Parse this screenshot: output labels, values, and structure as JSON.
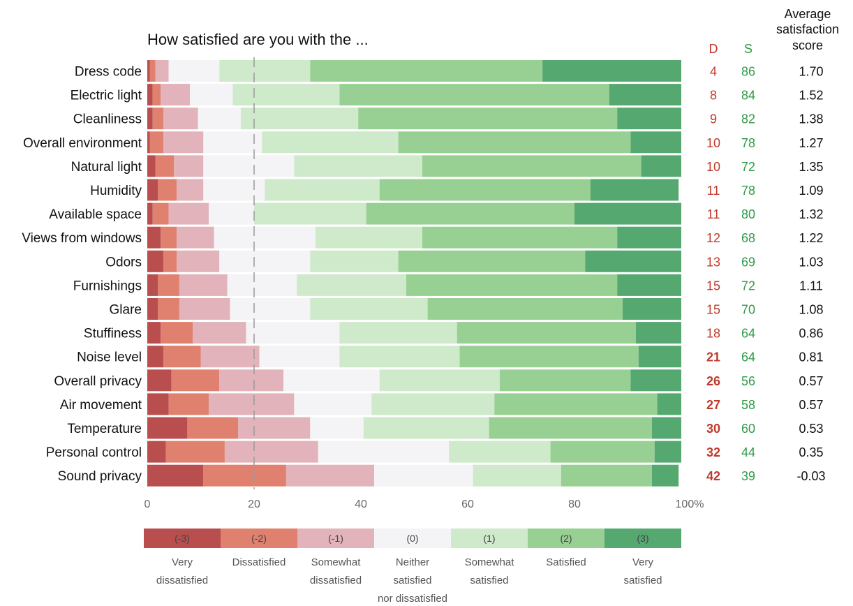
{
  "chart_data": {
    "type": "bar",
    "stacked": true,
    "orientation": "horizontal",
    "title": "How satisfied are you with the ...",
    "xlim": [
      0,
      100
    ],
    "x_ticks": [
      "0",
      "20",
      "40",
      "60",
      "80",
      "100%"
    ],
    "reference_line_x": 20,
    "categories": [
      "Dress code",
      "Electric light",
      "Cleanliness",
      "Overall environment",
      "Natural light",
      "Humidity",
      "Available space",
      "Views from windows",
      "Odors",
      "Furnishings",
      "Glare",
      "Stuffiness",
      "Noise level",
      "Overall privacy",
      "Air movement",
      "Temperature",
      "Personal control",
      "Sound privacy"
    ],
    "series": [
      {
        "name": "Very dissatisfied",
        "code": "(-3)",
        "color": "#b84e4e",
        "values": [
          0.5,
          1,
          1,
          0.5,
          1.5,
          2,
          1,
          2.5,
          3,
          2,
          2,
          2.5,
          3,
          4.5,
          4,
          7.5,
          3.5,
          10.5
        ]
      },
      {
        "name": "Dissatisfied",
        "code": "(-2)",
        "color": "#e0806e",
        "values": [
          1,
          1.5,
          2,
          2.5,
          3.5,
          3.5,
          3,
          3,
          2.5,
          4,
          4,
          6,
          7,
          9,
          7.5,
          9.5,
          11,
          15.5
        ]
      },
      {
        "name": "Somewhat dissatisfied",
        "code": "(-1)",
        "color": "#e2b3ba",
        "values": [
          2.5,
          5.5,
          6.5,
          7.5,
          5.5,
          5,
          7.5,
          7,
          8,
          9,
          9.5,
          10,
          11,
          12,
          16,
          13.5,
          17.5,
          16.5
        ]
      },
      {
        "name": "Neither satisfied nor dissatisfied",
        "code": "(0)",
        "color": "#f4f4f6",
        "values": [
          9.5,
          8,
          8,
          11,
          17,
          11.5,
          8.5,
          19,
          17,
          13,
          15,
          17.5,
          15,
          18,
          14.5,
          10,
          24.5,
          18.5
        ]
      },
      {
        "name": "Somewhat satisfied",
        "code": "(1)",
        "color": "#cfe9cb",
        "values": [
          17,
          20,
          22,
          25.5,
          24,
          21.5,
          21,
          20,
          16.5,
          20.5,
          22,
          22,
          22.5,
          22.5,
          23,
          23.5,
          19,
          16.5
        ]
      },
      {
        "name": "Satisfied",
        "code": "(2)",
        "color": "#98d093",
        "values": [
          43.5,
          50.5,
          48.5,
          43.5,
          41,
          39.5,
          39,
          36.5,
          35,
          39.5,
          36.5,
          33.5,
          33.5,
          24.5,
          30.5,
          30.5,
          19.5,
          17
        ]
      },
      {
        "name": "Very satisfied",
        "code": "(3)",
        "color": "#55a870",
        "values": [
          26,
          13.5,
          12,
          9.5,
          7.5,
          16.5,
          20,
          12,
          18,
          12,
          11,
          8.5,
          8,
          9.5,
          4.5,
          5.5,
          5,
          5
        ]
      }
    ],
    "legend_labels": [
      [
        "Very",
        "dissatisfied"
      ],
      [
        "Dissatisfied"
      ],
      [
        "Somewhat",
        "dissatisfied"
      ],
      [
        "Neither",
        "satisfied",
        "nor dissatisfied"
      ],
      [
        "Somewhat",
        "satisfied"
      ],
      [
        "Satisfied"
      ],
      [
        "Very",
        "satisfied"
      ]
    ],
    "legend_placement": "bottom",
    "side_columns": {
      "d_header": "D",
      "s_header": "S",
      "avg_header": [
        "Average",
        "satisfaction",
        "score"
      ],
      "d_values": [
        "4",
        "8",
        "9",
        "10",
        "10",
        "11",
        "11",
        "12",
        "13",
        "15",
        "15",
        "18",
        "21",
        "26",
        "27",
        "30",
        "32",
        "42"
      ],
      "d_bold_from_index": 12,
      "s_values": [
        "86",
        "84",
        "82",
        "78",
        "72",
        "78",
        "80",
        "68",
        "69",
        "72",
        "70",
        "64",
        "64",
        "56",
        "58",
        "60",
        "44",
        "39"
      ],
      "avg_values": [
        "1.70",
        "1.52",
        "1.38",
        "1.27",
        "1.35",
        "1.09",
        "1.32",
        "1.22",
        "1.03",
        "1.11",
        "1.08",
        "0.86",
        "0.81",
        "0.57",
        "0.57",
        "0.53",
        "0.35",
        "-0.03"
      ],
      "d_color": "#c0392b",
      "s_color": "#2e9a48",
      "avg_color": "#111111"
    }
  }
}
